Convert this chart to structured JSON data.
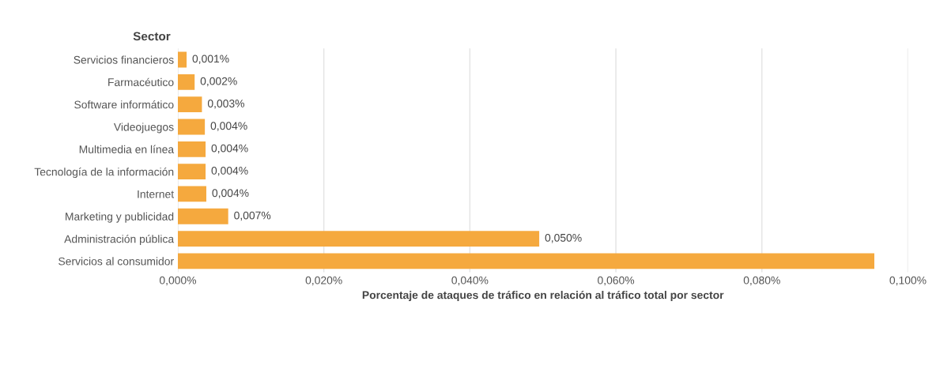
{
  "chart_data": {
    "type": "bar",
    "orientation": "horizontal",
    "ylabel": "Sector",
    "xlabel": "Porcentaje de ataques de tráfico en relación al tráfico total por sector",
    "categories": [
      "Servicios financieros",
      "Farmacéutico",
      "Software informático",
      "Videojuegos",
      "Multimedia en línea",
      "Tecnología de la información",
      "Internet",
      "Marketing y publicidad",
      "Administración pública",
      "Servicios al consumidor"
    ],
    "values": [
      0.0012,
      0.0023,
      0.0033,
      0.0037,
      0.0038,
      0.0038,
      0.0039,
      0.0069,
      0.0495,
      0.0954
    ],
    "value_labels": [
      "0,001%",
      "0,002%",
      "0,003%",
      "0,004%",
      "0,004%",
      "0,004%",
      "0,004%",
      "0,007%",
      "0,050%",
      null
    ],
    "color": "#f5a93e",
    "xlim": [
      0,
      0.1
    ],
    "xticks": [
      {
        "value": 0,
        "label": "0,000%"
      },
      {
        "value": 0.02,
        "label": "0,020%"
      },
      {
        "value": 0.04,
        "label": "0,040%"
      },
      {
        "value": 0.06,
        "label": "0,060%"
      },
      {
        "value": 0.08,
        "label": "0,080%"
      },
      {
        "value": 0.1,
        "label": "0,100%"
      }
    ],
    "grid": "x"
  }
}
